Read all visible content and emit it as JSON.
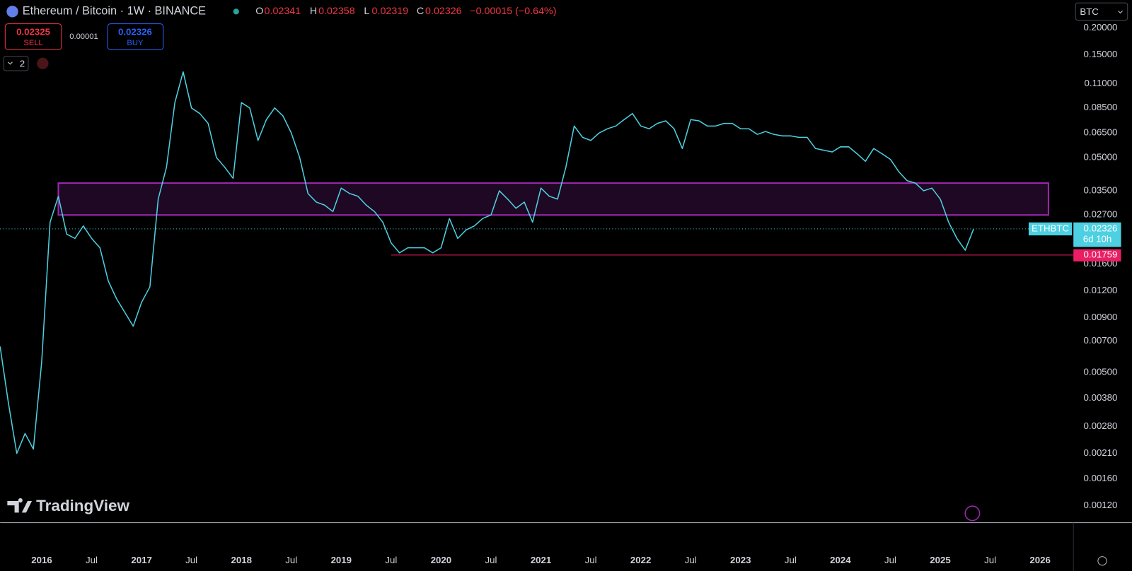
{
  "header": {
    "title": "Ethereum / Bitcoin · 1W · BINANCE",
    "o_label": "O",
    "open": "0.02341",
    "h_label": "H",
    "high": "0.02358",
    "l_label": "L",
    "low": "0.02319",
    "c_label": "C",
    "change": "−0.00015 (−0.64%)"
  },
  "ui": {
    "sell_price": "0.02325",
    "sell": "SELL",
    "spread": "0.00001",
    "buy_price": "0.02326",
    "buy": "BUY",
    "indicators": "2",
    "currency": "BTC",
    "brand": "TradingView",
    "symbol": "ETHBTC",
    "countdown": "6d 10h"
  },
  "chart_data": {
    "type": "line",
    "log_scale": true,
    "grid": false,
    "x": [
      "2015-08",
      "2015-09",
      "2015-10",
      "2015-11",
      "2015-12",
      "2016-01",
      "2016-02",
      "2016-03",
      "2016-04",
      "2016-05",
      "2016-06",
      "2016-07",
      "2016-08",
      "2016-09",
      "2016-10",
      "2016-11",
      "2016-12",
      "2017-01",
      "2017-02",
      "2017-03",
      "2017-04",
      "2017-05",
      "2017-06",
      "2017-07",
      "2017-08",
      "2017-09",
      "2017-10",
      "2017-11",
      "2017-12",
      "2018-01",
      "2018-02",
      "2018-03",
      "2018-04",
      "2018-05",
      "2018-06",
      "2018-07",
      "2018-08",
      "2018-09",
      "2018-10",
      "2018-11",
      "2018-12",
      "2019-01",
      "2019-02",
      "2019-03",
      "2019-04",
      "2019-05",
      "2019-06",
      "2019-07",
      "2019-08",
      "2019-09",
      "2019-10",
      "2019-11",
      "2019-12",
      "2020-01",
      "2020-02",
      "2020-03",
      "2020-04",
      "2020-05",
      "2020-06",
      "2020-07",
      "2020-08",
      "2020-09",
      "2020-10",
      "2020-11",
      "2020-12",
      "2021-01",
      "2021-02",
      "2021-03",
      "2021-04",
      "2021-05",
      "2021-06",
      "2021-07",
      "2021-08",
      "2021-09",
      "2021-10",
      "2021-11",
      "2021-12",
      "2022-01",
      "2022-02",
      "2022-03",
      "2022-04",
      "2022-05",
      "2022-06",
      "2022-07",
      "2022-08",
      "2022-09",
      "2022-10",
      "2022-11",
      "2022-12",
      "2023-01",
      "2023-02",
      "2023-03",
      "2023-04",
      "2023-05",
      "2023-06",
      "2023-07",
      "2023-08",
      "2023-09",
      "2023-10",
      "2023-11",
      "2023-12",
      "2024-01",
      "2024-02",
      "2024-03",
      "2024-04",
      "2024-05",
      "2024-06",
      "2024-07",
      "2024-08",
      "2024-09",
      "2024-10",
      "2024-11",
      "2024-12",
      "2025-01",
      "2025-02",
      "2025-03",
      "2025-04",
      "2025-05"
    ],
    "series": [
      {
        "name": "ETHBTC",
        "color": "#4dd0e1",
        "values": [
          0.0066,
          0.0036,
          0.0021,
          0.0026,
          0.0022,
          0.0056,
          0.025,
          0.033,
          0.022,
          0.021,
          0.024,
          0.021,
          0.019,
          0.0133,
          0.011,
          0.0095,
          0.0082,
          0.0106,
          0.0125,
          0.032,
          0.045,
          0.09,
          0.125,
          0.085,
          0.08,
          0.072,
          0.05,
          0.045,
          0.04,
          0.09,
          0.085,
          0.06,
          0.075,
          0.085,
          0.078,
          0.065,
          0.05,
          0.034,
          0.031,
          0.03,
          0.028,
          0.036,
          0.034,
          0.033,
          0.03,
          0.028,
          0.025,
          0.02,
          0.018,
          0.019,
          0.019,
          0.019,
          0.018,
          0.019,
          0.026,
          0.021,
          0.023,
          0.024,
          0.026,
          0.027,
          0.035,
          0.032,
          0.029,
          0.031,
          0.025,
          0.036,
          0.033,
          0.032,
          0.045,
          0.07,
          0.062,
          0.06,
          0.065,
          0.068,
          0.07,
          0.075,
          0.08,
          0.07,
          0.068,
          0.072,
          0.074,
          0.068,
          0.055,
          0.075,
          0.074,
          0.07,
          0.07,
          0.072,
          0.072,
          0.068,
          0.068,
          0.064,
          0.066,
          0.064,
          0.063,
          0.063,
          0.062,
          0.062,
          0.055,
          0.054,
          0.053,
          0.056,
          0.056,
          0.052,
          0.048,
          0.055,
          0.052,
          0.049,
          0.043,
          0.039,
          0.038,
          0.035,
          0.036,
          0.032,
          0.025,
          0.021,
          0.0185,
          0.02326
        ]
      }
    ],
    "xlim": [
      "2015-08",
      "2026-05"
    ],
    "xticks": [
      {
        "value": "2016-01",
        "label": "2016"
      },
      {
        "value": "2016-07",
        "label": "Jul"
      },
      {
        "value": "2017-01",
        "label": "2017"
      },
      {
        "value": "2017-07",
        "label": "Jul"
      },
      {
        "value": "2018-01",
        "label": "2018"
      },
      {
        "value": "2018-07",
        "label": "Jul"
      },
      {
        "value": "2019-01",
        "label": "2019"
      },
      {
        "value": "2019-07",
        "label": "Jul"
      },
      {
        "value": "2020-01",
        "label": "2020"
      },
      {
        "value": "2020-07",
        "label": "Jul"
      },
      {
        "value": "2021-01",
        "label": "2021"
      },
      {
        "value": "2021-07",
        "label": "Jul"
      },
      {
        "value": "2022-01",
        "label": "2022"
      },
      {
        "value": "2022-07",
        "label": "Jul"
      },
      {
        "value": "2023-01",
        "label": "2023"
      },
      {
        "value": "2023-07",
        "label": "Jul"
      },
      {
        "value": "2024-01",
        "label": "2024"
      },
      {
        "value": "2024-07",
        "label": "Jul"
      },
      {
        "value": "2025-01",
        "label": "2025"
      },
      {
        "value": "2025-07",
        "label": "Jul"
      },
      {
        "value": "2026-01",
        "label": "2026"
      }
    ],
    "ylim": [
      0.001,
      0.27
    ],
    "yticks": [
      {
        "value": 0.2,
        "label": "0.20000"
      },
      {
        "value": 0.15,
        "label": "0.15000"
      },
      {
        "value": 0.11,
        "label": "0.11000"
      },
      {
        "value": 0.085,
        "label": "0.08500"
      },
      {
        "value": 0.065,
        "label": "0.06500"
      },
      {
        "value": 0.05,
        "label": "0.05000"
      },
      {
        "value": 0.035,
        "label": "0.03500"
      },
      {
        "value": 0.027,
        "label": "0.02700"
      },
      {
        "value": 0.016,
        "label": "0.01600"
      },
      {
        "value": 0.012,
        "label": "0.01200"
      },
      {
        "value": 0.009,
        "label": "0.00900"
      },
      {
        "value": 0.007,
        "label": "0.00700"
      },
      {
        "value": 0.005,
        "label": "0.00500"
      },
      {
        "value": 0.0038,
        "label": "0.00380"
      },
      {
        "value": 0.0028,
        "label": "0.00280"
      },
      {
        "value": 0.0021,
        "label": "0.00210"
      },
      {
        "value": 0.0016,
        "label": "0.00160"
      },
      {
        "value": 0.0012,
        "label": "0.00120"
      }
    ],
    "zone": {
      "low": 0.027,
      "high": 0.038,
      "start": "2016-03",
      "end": "2026-02",
      "color": "#9c27b0"
    },
    "level": {
      "value": 0.01759,
      "start": "2019-07",
      "color": "#e91e63"
    },
    "last_price": 0.02326
  }
}
